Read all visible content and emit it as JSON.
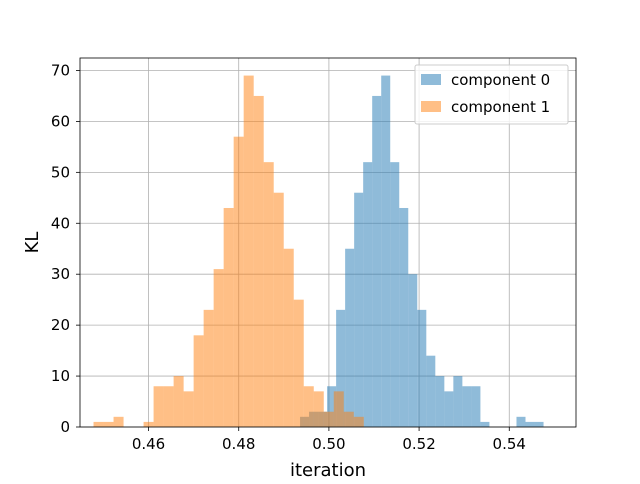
{
  "chart_data": {
    "type": "bar",
    "subtype": "overlaid-histogram",
    "xlabel": "iteration",
    "ylabel": "KL",
    "xlim": [
      0.4448,
      0.5548
    ],
    "ylim": [
      0,
      72.45
    ],
    "xticks": [
      0.46,
      0.48,
      0.5,
      0.52,
      0.54
    ],
    "xtick_labels": [
      "0.46",
      "0.48",
      "0.50",
      "0.52",
      "0.54"
    ],
    "yticks": [
      0,
      10,
      20,
      30,
      40,
      50,
      60,
      70
    ],
    "ytick_labels": [
      "0",
      "10",
      "20",
      "30",
      "40",
      "50",
      "60",
      "70"
    ],
    "grid": true,
    "legend_position": "top-right",
    "series": [
      {
        "name": "component 0",
        "color": "#1f77b4",
        "alpha": 0.5,
        "bin_start": 0.4936,
        "bin_width": 0.002,
        "values": [
          2,
          3,
          3,
          8,
          23,
          35,
          46,
          52,
          65,
          69,
          52,
          43,
          30,
          23,
          14,
          10,
          7,
          10,
          8,
          8,
          1,
          0,
          0,
          0,
          2,
          1,
          1
        ]
      },
      {
        "name": "component 1",
        "color": "#ff7f0e",
        "alpha": 0.5,
        "bin_start": 0.4478,
        "bin_width": 0.00222,
        "values": [
          1,
          1,
          2,
          0,
          0,
          1,
          8,
          8,
          10,
          7,
          18,
          23,
          31,
          43,
          57,
          69,
          65,
          52,
          46,
          35,
          25,
          8,
          7,
          3,
          7,
          3,
          2
        ]
      }
    ]
  }
}
